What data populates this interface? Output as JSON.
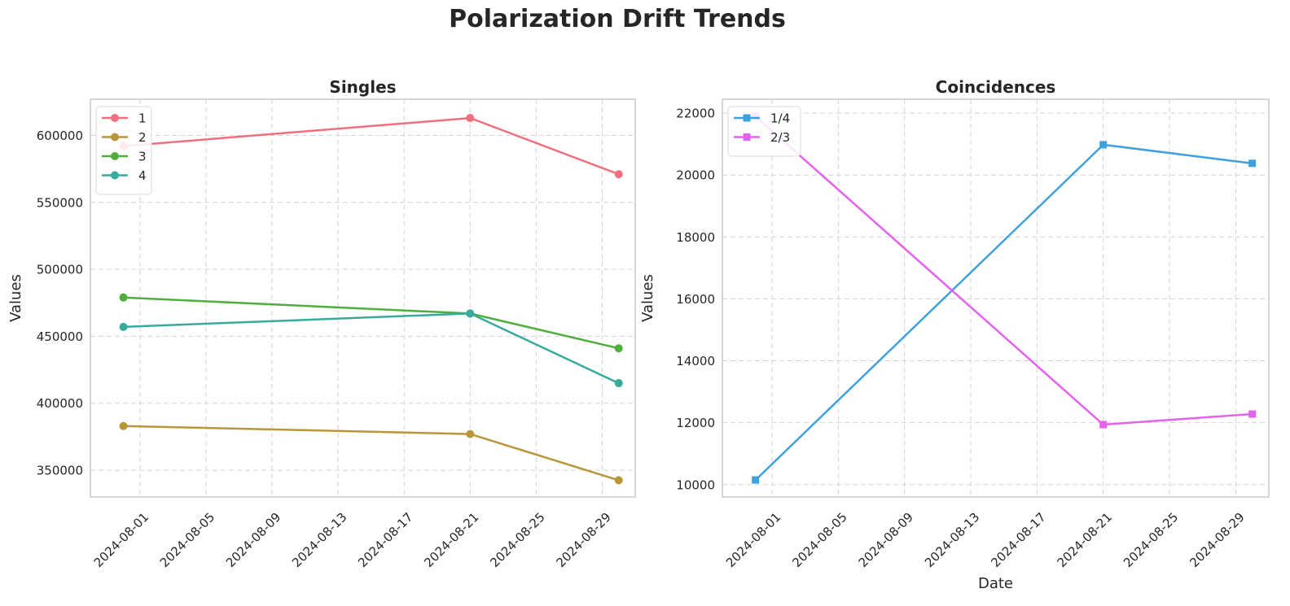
{
  "figure": {
    "suptitle": "Polarization Drift Trends"
  },
  "chart_data": [
    {
      "type": "line",
      "title": "Singles",
      "xlabel": "",
      "ylabel": "Values",
      "x": [
        "2024-07-31",
        "2024-08-21",
        "2024-08-30"
      ],
      "x_type": "date",
      "xlim": [
        "2024-07-29",
        "2024-08-31"
      ],
      "xticks": [
        "2024-08-01",
        "2024-08-05",
        "2024-08-09",
        "2024-08-13",
        "2024-08-17",
        "2024-08-21",
        "2024-08-25",
        "2024-08-29"
      ],
      "ylim": [
        330000,
        627000
      ],
      "yticks": [
        350000,
        400000,
        450000,
        500000,
        550000,
        600000
      ],
      "grid": true,
      "legend_position": "upper-left",
      "marker": "circle",
      "series": [
        {
          "name": "1",
          "color": "#f0707f",
          "values": [
            592000,
            613000,
            571000
          ]
        },
        {
          "name": "2",
          "color": "#b8963a",
          "values": [
            383000,
            377000,
            342500
          ]
        },
        {
          "name": "3",
          "color": "#4eae3e",
          "values": [
            479000,
            467000,
            441000
          ]
        },
        {
          "name": "4",
          "color": "#36ab9d",
          "values": [
            457000,
            467000,
            415000
          ]
        }
      ]
    },
    {
      "type": "line",
      "title": "Coincidences",
      "xlabel": "Date",
      "ylabel": "Values",
      "x": [
        "2024-07-31",
        "2024-08-21",
        "2024-08-30"
      ],
      "x_type": "date",
      "xlim": [
        "2024-07-29",
        "2024-08-31"
      ],
      "xticks": [
        "2024-08-01",
        "2024-08-05",
        "2024-08-09",
        "2024-08-13",
        "2024-08-17",
        "2024-08-21",
        "2024-08-25",
        "2024-08-29"
      ],
      "ylim": [
        9600,
        22450
      ],
      "yticks": [
        10000,
        12000,
        14000,
        16000,
        18000,
        20000,
        22000
      ],
      "grid": true,
      "legend_position": "upper-left",
      "marker": "square",
      "series": [
        {
          "name": "1/4",
          "color": "#3da1e0",
          "values": [
            10150,
            20980,
            20380
          ]
        },
        {
          "name": "2/3",
          "color": "#e362ef",
          "values": [
            21900,
            11940,
            12280
          ]
        }
      ]
    }
  ]
}
